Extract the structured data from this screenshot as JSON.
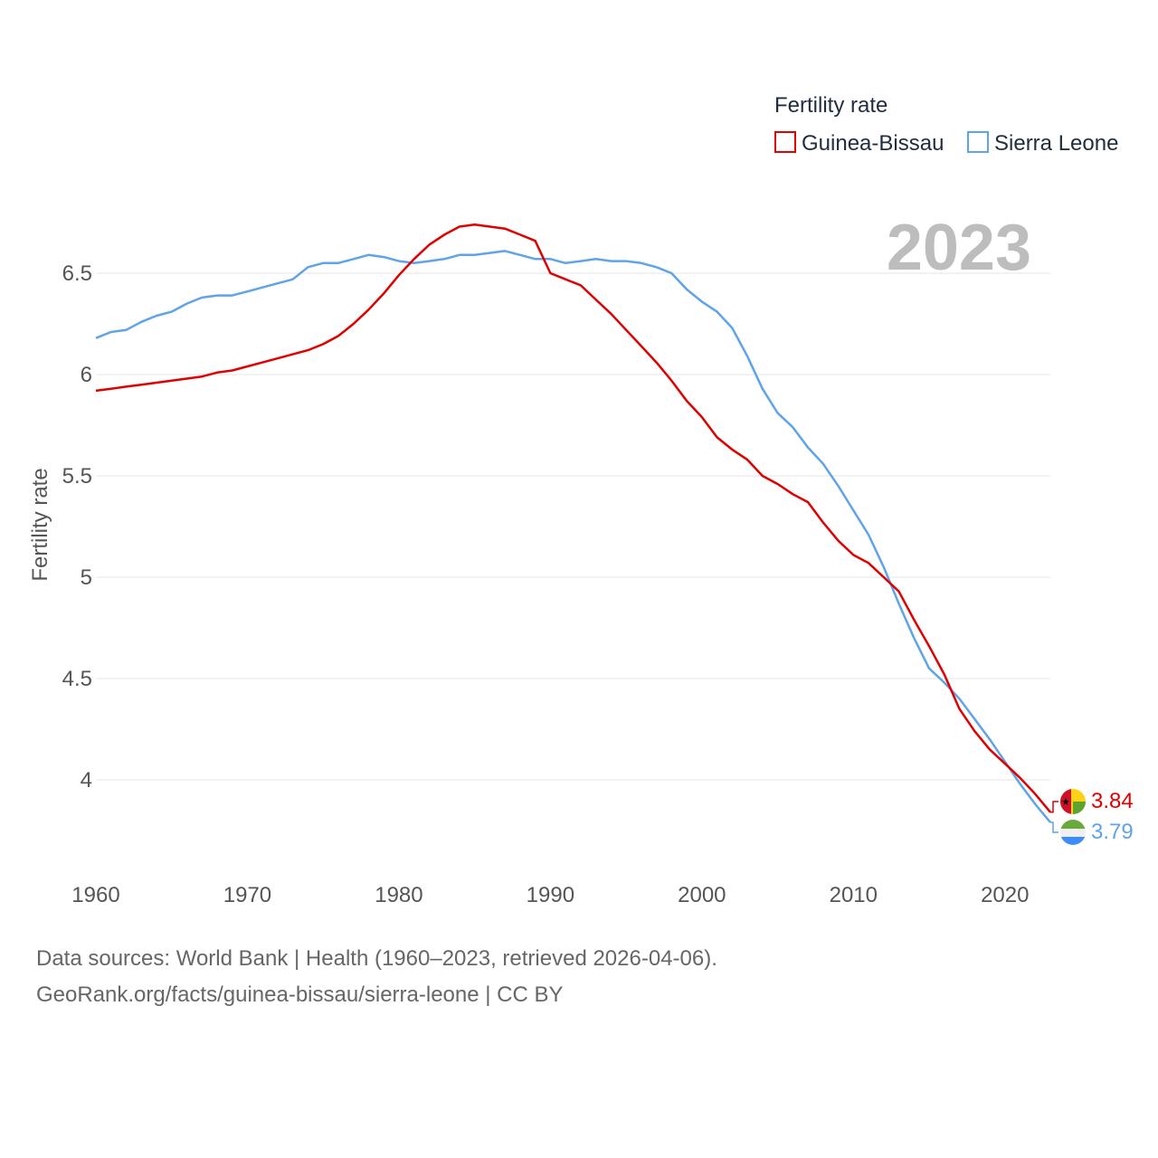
{
  "chart_data": {
    "type": "line",
    "title": "",
    "legend_title": "Fertility rate",
    "year_label": "2023",
    "xlabel": "",
    "ylabel": "Fertility rate",
    "xlim": [
      1960,
      2023
    ],
    "ylim": [
      3.6,
      6.9
    ],
    "x_ticks": [
      1960,
      1970,
      1980,
      1990,
      2000,
      2010,
      2020
    ],
    "y_ticks": [
      {
        "value": 4,
        "label": "4"
      },
      {
        "value": 4.5,
        "label": "4.5"
      },
      {
        "value": 5,
        "label": "5"
      },
      {
        "value": 5.5,
        "label": "5.5"
      },
      {
        "value": 6,
        "label": "6"
      },
      {
        "value": 6.5,
        "label": "6.5"
      }
    ],
    "legend_position": "top-right",
    "series": [
      {
        "name": "Guinea-Bissau",
        "color": "#e00000",
        "end_label": "3.84",
        "end_value": 3.84,
        "flag_icon": "guinea-bissau-flag-icon",
        "x": [
          1960,
          1961,
          1962,
          1963,
          1964,
          1965,
          1966,
          1967,
          1968,
          1969,
          1970,
          1971,
          1972,
          1973,
          1974,
          1975,
          1976,
          1977,
          1978,
          1979,
          1980,
          1981,
          1982,
          1983,
          1984,
          1985,
          1986,
          1987,
          1988,
          1989,
          1990,
          1991,
          1992,
          1993,
          1994,
          1995,
          1996,
          1997,
          1998,
          1999,
          2000,
          2001,
          2002,
          2003,
          2004,
          2005,
          2006,
          2007,
          2008,
          2009,
          2010,
          2011,
          2012,
          2013,
          2014,
          2015,
          2016,
          2017,
          2018,
          2019,
          2020,
          2021,
          2022,
          2023
        ],
        "values": [
          5.92,
          5.93,
          5.94,
          5.95,
          5.96,
          5.97,
          5.98,
          5.99,
          6.01,
          6.02,
          6.04,
          6.06,
          6.08,
          6.1,
          6.12,
          6.15,
          6.19,
          6.25,
          6.32,
          6.4,
          6.49,
          6.57,
          6.64,
          6.69,
          6.73,
          6.74,
          6.73,
          6.72,
          6.69,
          6.66,
          6.5,
          6.47,
          6.44,
          6.37,
          6.3,
          6.22,
          6.14,
          6.06,
          5.97,
          5.87,
          5.79,
          5.69,
          5.63,
          5.58,
          5.5,
          5.46,
          5.41,
          5.37,
          5.27,
          5.18,
          5.11,
          5.07,
          5.0,
          4.93,
          4.79,
          4.66,
          4.52,
          4.35,
          4.24,
          4.15,
          4.08,
          4.01,
          3.93,
          3.84
        ]
      },
      {
        "name": "Sierra Leone",
        "color": "#5fa3e8",
        "end_label": "3.79",
        "end_value": 3.79,
        "flag_icon": "sierra-leone-flag-icon",
        "x": [
          1960,
          1961,
          1962,
          1963,
          1964,
          1965,
          1966,
          1967,
          1968,
          1969,
          1970,
          1971,
          1972,
          1973,
          1974,
          1975,
          1976,
          1977,
          1978,
          1979,
          1980,
          1981,
          1982,
          1983,
          1984,
          1985,
          1986,
          1987,
          1988,
          1989,
          1990,
          1991,
          1992,
          1993,
          1994,
          1995,
          1996,
          1997,
          1998,
          1999,
          2000,
          2001,
          2002,
          2003,
          2004,
          2005,
          2006,
          2007,
          2008,
          2009,
          2010,
          2011,
          2012,
          2013,
          2014,
          2015,
          2016,
          2017,
          2018,
          2019,
          2020,
          2021,
          2022,
          2023
        ],
        "values": [
          6.18,
          6.21,
          6.22,
          6.26,
          6.29,
          6.31,
          6.35,
          6.38,
          6.39,
          6.39,
          6.41,
          6.43,
          6.45,
          6.47,
          6.53,
          6.55,
          6.55,
          6.57,
          6.59,
          6.58,
          6.56,
          6.55,
          6.56,
          6.57,
          6.59,
          6.59,
          6.6,
          6.61,
          6.59,
          6.57,
          6.57,
          6.55,
          6.56,
          6.57,
          6.56,
          6.56,
          6.55,
          6.53,
          6.5,
          6.42,
          6.36,
          6.31,
          6.23,
          6.09,
          5.93,
          5.81,
          5.74,
          5.64,
          5.56,
          5.45,
          5.33,
          5.21,
          5.05,
          4.87,
          4.7,
          4.55,
          4.48,
          4.4,
          4.3,
          4.2,
          4.09,
          3.98,
          3.88,
          3.79
        ]
      }
    ]
  },
  "footer": {
    "line1": "Data sources: World Bank | Health (1960–2023, retrieved 2026-04-06).",
    "line2": "GeoRank.org/facts/guinea-bissau/sierra-leone | CC BY"
  }
}
